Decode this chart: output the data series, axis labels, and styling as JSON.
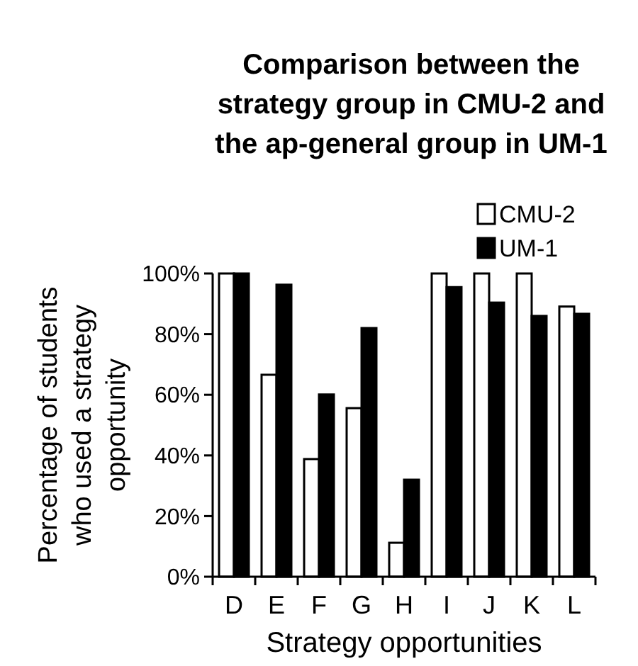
{
  "chart_data": {
    "type": "bar",
    "title": "Comparison between the strategy group in CMU-2 and the ap-general group in UM-1",
    "xlabel": "Strategy opportunities",
    "ylabel": "Percentage of students who used a strategy opportunity",
    "categories": [
      "D",
      "E",
      "F",
      "G",
      "H",
      "I",
      "J",
      "K",
      "L"
    ],
    "series": [
      {
        "name": "CMU-2",
        "color": "#ffffff",
        "values": [
          100,
          66.6,
          38.8,
          55.6,
          11.2,
          100,
          100,
          100,
          89.1
        ]
      },
      {
        "name": "UM-1",
        "color": "#000000",
        "values": [
          100,
          96.3,
          60.1,
          82,
          32,
          95.5,
          90.4,
          86,
          86.7
        ]
      }
    ],
    "ylim": [
      0,
      100
    ],
    "yticks": [
      {
        "value": 0,
        "label": "0%"
      },
      {
        "value": 20,
        "label": "20%"
      },
      {
        "value": 40,
        "label": "40%"
      },
      {
        "value": 60,
        "label": "60%"
      },
      {
        "value": 80,
        "label": "80%"
      },
      {
        "value": 100,
        "label": "100%"
      }
    ],
    "grid": false,
    "legend": "top right"
  }
}
